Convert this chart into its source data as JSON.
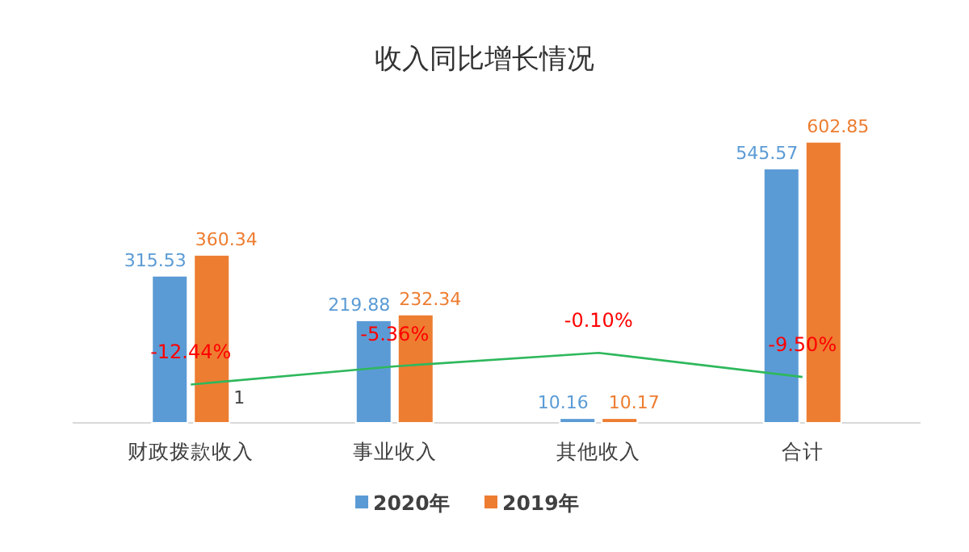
{
  "chart_data": {
    "type": "bar",
    "title": "收入同比增长情况",
    "categories": [
      "财政拨款收入",
      "事业收入",
      "其他收入",
      "合计"
    ],
    "series": [
      {
        "name": "2020年",
        "color": "#5b9bd5",
        "values": [
          315.53,
          219.88,
          10.16,
          545.57
        ]
      },
      {
        "name": "2019年",
        "color": "#ed7d31",
        "values": [
          360.34,
          232.34,
          10.17,
          602.85
        ]
      },
      {
        "type": "line",
        "axis": "y2",
        "color": "#2eb85c",
        "values": [
          -12.44,
          -5.36,
          -0.1,
          -9.5
        ],
        "value_labels": [
          "-12.44%",
          "-5.36%",
          "-0.10%",
          "-9.50%"
        ]
      }
    ],
    "data_labels": true,
    "legend": "bottom",
    "annotations": [
      "1"
    ]
  }
}
